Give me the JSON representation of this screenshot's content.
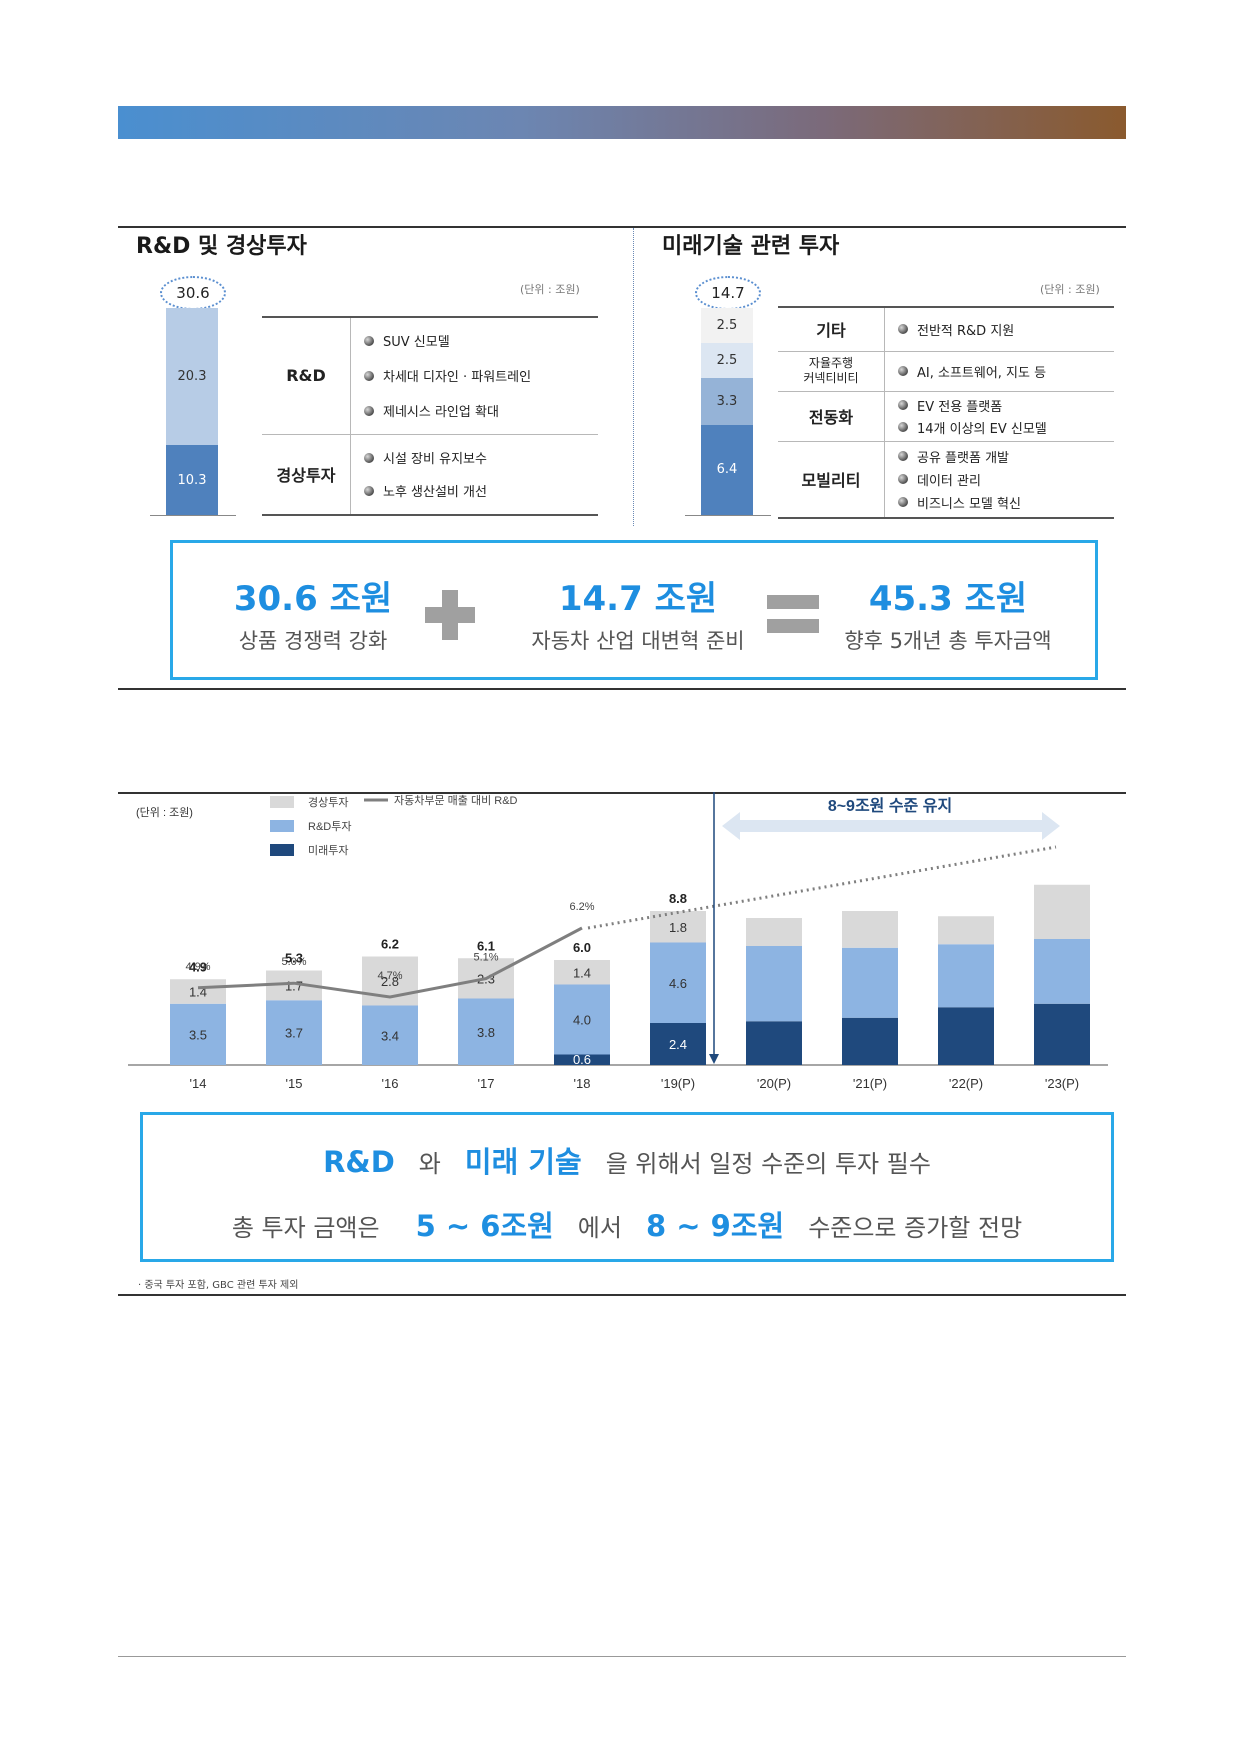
{
  "left_panel": {
    "title": "R&D 및 경상투자",
    "unit": "(단위 : 조원)",
    "total": "30.6",
    "segments": [
      {
        "label": "20.3",
        "value": 20.3,
        "color": "#b7cce6"
      },
      {
        "label": "10.3",
        "value": 10.3,
        "color": "#4f81bd"
      }
    ],
    "rows": [
      {
        "label": "R&D",
        "items": [
          "SUV 신모델",
          "차세대 디자인 · 파워트레인",
          "제네시스 라인업 확대"
        ]
      },
      {
        "label": "경상투자",
        "items": [
          "시설 장비 유지보수",
          "노후 생산설비 개선"
        ]
      }
    ]
  },
  "right_panel": {
    "title": "미래기술 관련 투자",
    "unit": "(단위 : 조원)",
    "total": "14.7",
    "segments": [
      {
        "label": "2.5",
        "value": 2.5,
        "color": "#f2f2f2"
      },
      {
        "label": "2.5",
        "value": 2.5,
        "color": "#dce6f2"
      },
      {
        "label": "3.3",
        "value": 3.3,
        "color": "#95b3d7"
      },
      {
        "label": "6.4",
        "value": 6.4,
        "color": "#4f81bd"
      }
    ],
    "rows": [
      {
        "label": "기타",
        "items": [
          "전반적 R&D 지원"
        ]
      },
      {
        "label": "자율주행\n커넥티비티",
        "items": [
          "AI, 소프트웨어, 지도 등"
        ]
      },
      {
        "label": "전동화",
        "items": [
          "EV 전용 플랫폼",
          "14개 이상의 EV 신모델"
        ]
      },
      {
        "label": "모빌리티",
        "items": [
          "공유 플랫폼 개발",
          "데이터 관리",
          "비즈니스 모델 혁신"
        ]
      }
    ]
  },
  "summary": {
    "a_value": "30.6 조원",
    "a_label": "상품 경쟁력 강화",
    "b_value": "14.7 조원",
    "b_label": "자동차 산업 대변혁 준비",
    "c_value": "45.3 조원",
    "c_label": "향후 5개년 총 투자금액"
  },
  "chart_data": {
    "type": "bar",
    "unit": "(단위 : 조원)",
    "legend": [
      "경상투자",
      "R&D투자",
      "미래투자",
      "자동차부문 매출 대비 R&D"
    ],
    "annotation": "8~9조원 수준 유지",
    "categories": [
      "'14",
      "'15",
      "'16",
      "'17",
      "'18",
      "'19(P)",
      "'20(P)",
      "'21(P)",
      "'22(P)",
      "'23(P)"
    ],
    "series": [
      {
        "name": "미래투자",
        "color": "#1f497d",
        "values": [
          0,
          0,
          0,
          0,
          0.6,
          2.4,
          2.5,
          2.7,
          3.3,
          3.5
        ]
      },
      {
        "name": "R&D투자",
        "color": "#8db4e2",
        "values": [
          3.5,
          3.7,
          3.4,
          3.8,
          4.0,
          4.6,
          4.3,
          4.0,
          3.6,
          3.7
        ]
      },
      {
        "name": "경상투자",
        "color": "#d9d9d9",
        "values": [
          1.4,
          1.7,
          2.8,
          2.3,
          1.4,
          1.8,
          1.6,
          2.1,
          1.6,
          3.1
        ]
      }
    ],
    "labels": {
      "미래투자": [
        "",
        "",
        "",
        "",
        "0.6",
        "2.4",
        "",
        "",
        "",
        ""
      ],
      "R&D투자": [
        "3.5",
        "3.7",
        "3.4",
        "3.8",
        "4.0",
        "4.6",
        "",
        "",
        "",
        ""
      ],
      "경상투자": [
        "1.4",
        "1.7",
        "2.8",
        "2.3",
        "1.4",
        "1.8",
        "",
        "",
        "",
        ""
      ]
    },
    "totals": [
      "4.9",
      "5.3",
      "6.2",
      "6.1",
      "6.0",
      "8.8",
      "",
      "",
      "",
      ""
    ],
    "ratio_line": {
      "name": "자동차부문 매출 대비 R&D",
      "values": [
        4.9,
        5.0,
        4.7,
        5.1,
        6.2
      ],
      "labels": [
        "4.9%",
        "5.0%",
        "4.7%",
        "5.1%",
        "6.2%"
      ]
    }
  },
  "bottom_box": {
    "line1_a": "R&D",
    "line1_b": "와",
    "line1_c": "미래 기술",
    "line1_d": "을 위해서 일정 수준의 투자 필수",
    "line2_a": "총 투자 금액은",
    "line2_b": "5 ~ 6조원",
    "line2_c": "에서",
    "line2_d": "8 ~ 9조원",
    "line2_e": "수준으로 증가할 전망"
  },
  "footnote": "· 중국 투자 포함, GBC 관련 투자 제외"
}
